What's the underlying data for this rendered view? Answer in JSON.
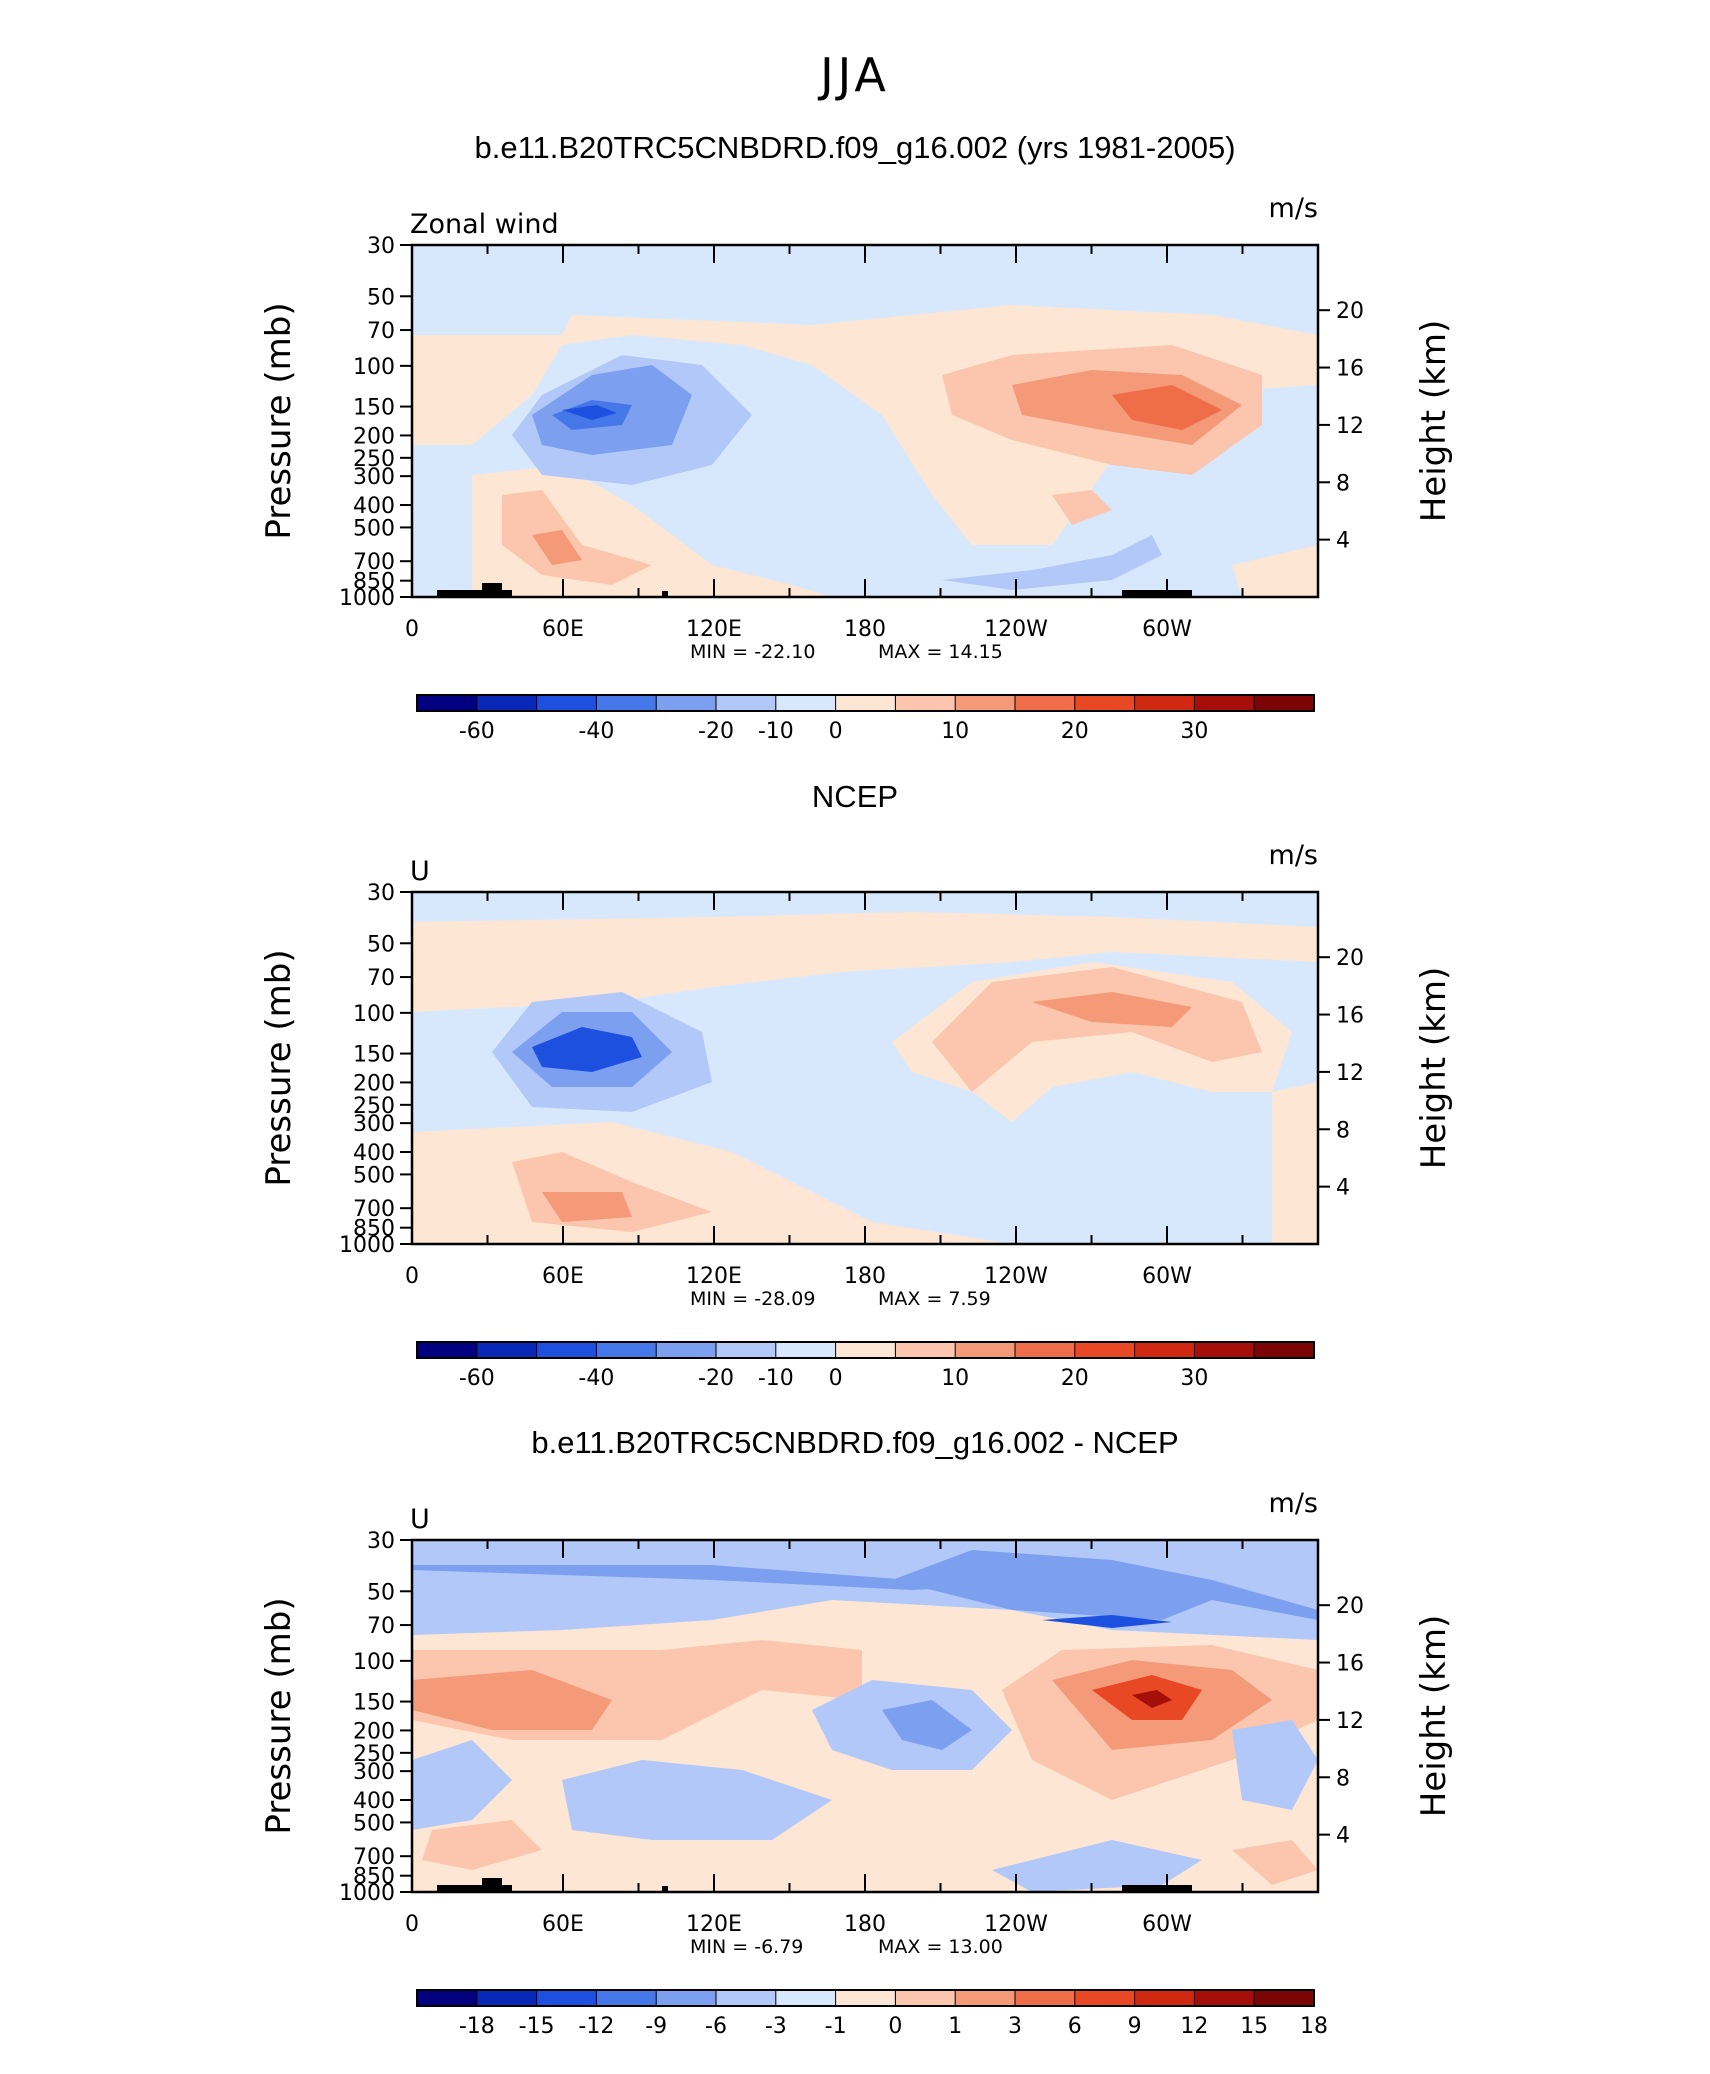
{
  "main_title": "JJA",
  "chart_data": [
    {
      "type": "heatmap",
      "title": "b.e11.B20TRC5CNBDRD.f09_g16.002 (yrs 1981-2005)",
      "corner_label": "Zonal wind",
      "units": "m/s",
      "ylabel": "Pressure (mb)",
      "y2label": "Height (km)",
      "x_tick_labels": [
        "0",
        "60E",
        "120E",
        "180",
        "120W",
        "60W"
      ],
      "y_tick_labels": [
        "30",
        "50",
        "70",
        "100",
        "150",
        "200",
        "250",
        "300",
        "400",
        "500",
        "700",
        "850",
        "1000"
      ],
      "y2_tick_labels": [
        "20",
        "16",
        "12",
        "8",
        "4"
      ],
      "y_scale": "log",
      "min_text": "MIN = -22.10",
      "max_text": "MAX = 14.15",
      "colorbar_labels": [
        "-60",
        "-40",
        "-20",
        "-10",
        "0",
        "10",
        "20",
        "30"
      ]
    },
    {
      "type": "heatmap",
      "title": "NCEP",
      "corner_label": "U",
      "units": "m/s",
      "ylabel": "Pressure (mb)",
      "y2label": "Height (km)",
      "x_tick_labels": [
        "0",
        "60E",
        "120E",
        "180",
        "120W",
        "60W"
      ],
      "y_tick_labels": [
        "30",
        "50",
        "70",
        "100",
        "150",
        "200",
        "250",
        "300",
        "400",
        "500",
        "700",
        "850",
        "1000"
      ],
      "y2_tick_labels": [
        "20",
        "16",
        "12",
        "8",
        "4"
      ],
      "y_scale": "log",
      "min_text": "MIN = -28.09",
      "max_text": "MAX = 7.59",
      "colorbar_labels": [
        "-60",
        "-40",
        "-20",
        "-10",
        "0",
        "10",
        "20",
        "30"
      ]
    },
    {
      "type": "heatmap",
      "title": "b.e11.B20TRC5CNBDRD.f09_g16.002 - NCEP",
      "corner_label": "U",
      "units": "m/s",
      "ylabel": "Pressure (mb)",
      "y2label": "Height (km)",
      "x_tick_labels": [
        "0",
        "60E",
        "120E",
        "180",
        "120W",
        "60W"
      ],
      "y_tick_labels": [
        "30",
        "50",
        "70",
        "100",
        "150",
        "200",
        "250",
        "300",
        "400",
        "500",
        "700",
        "850",
        "1000"
      ],
      "y2_tick_labels": [
        "20",
        "16",
        "12",
        "8",
        "4"
      ],
      "y_scale": "log",
      "min_text": "MIN = -6.79",
      "max_text": "MAX = 13.00",
      "colorbar_labels": [
        "-18",
        "-15",
        "-12",
        "-9",
        "-6",
        "-3",
        "-1",
        "0",
        "1",
        "3",
        "6",
        "9",
        "12",
        "15",
        "18"
      ]
    }
  ],
  "colorbar_colors": [
    "#02007f",
    "#0a28b8",
    "#1e50e0",
    "#4677e8",
    "#7c9ff0",
    "#b2c8f8",
    "#d8e8fc",
    "#fde6d3",
    "#fbc6ad",
    "#f49a78",
    "#ef6d48",
    "#e84823",
    "#cf2a11",
    "#a60e0a",
    "#7b0404"
  ],
  "contour_colors": {
    "neg_strong": "#1e50e0",
    "neg_mod": "#4677e8",
    "neg_weak": "#7c9ff0",
    "neg_faint": "#b2c8f8",
    "neg_light": "#d8e8fc",
    "pos_light": "#fde6d3",
    "pos_faint": "#fbc6ad",
    "pos_weak": "#f49a78",
    "pos_mod": "#ef6d48",
    "pos_strong": "#e84823",
    "pos_max": "#a60e0a"
  }
}
